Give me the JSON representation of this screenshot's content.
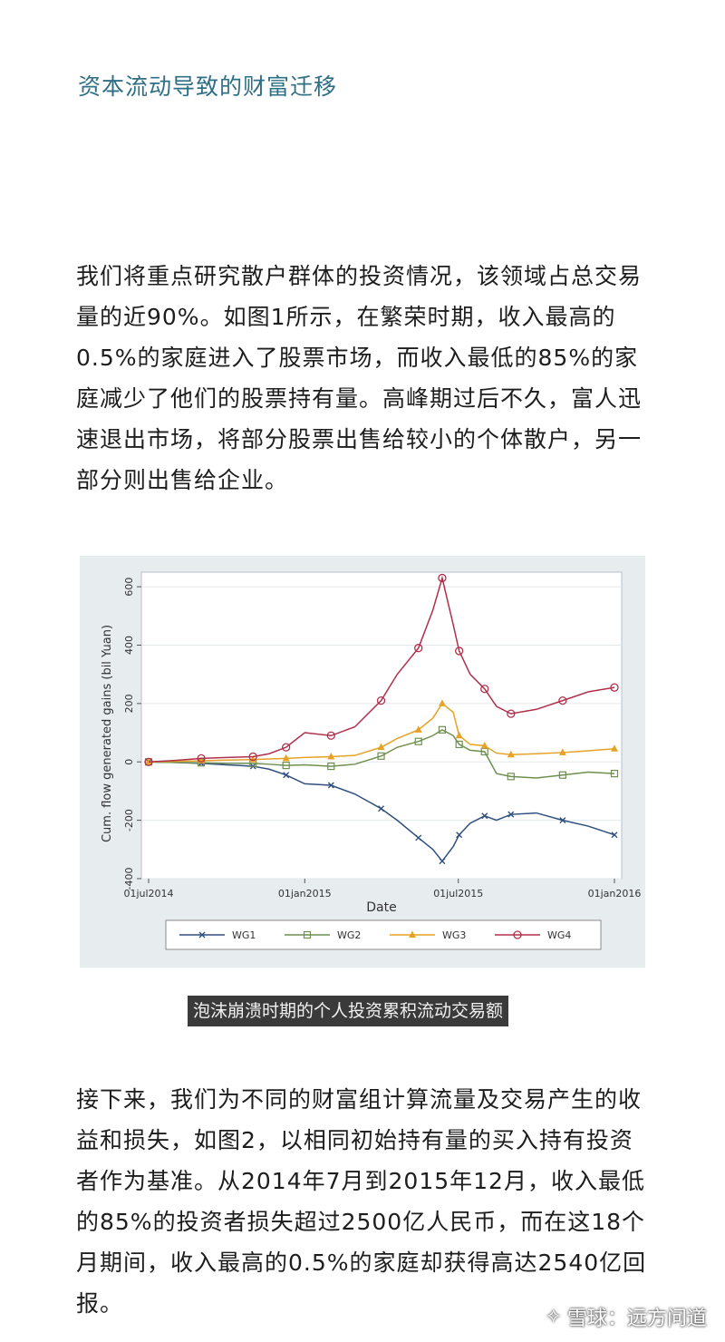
{
  "article": {
    "heading": "资本流动导致的财富迁移",
    "paragraph1": "我们将重点研究散户群体的投资情况，该领域占总交易量的近90%。如图1所示，在繁荣时期，收入最高的0.5%的家庭进入了股票市场，而收入最低的85%的家庭减少了他们的股票持有量。高峰期过后不久，富人迅速退出市场，将部分股票出售给较小的个体散户，另一部分则出售给企业。",
    "caption": "泡沫崩溃时期的个人投资累积流动交易额",
    "paragraph2": "接下来，我们为不同的财富组计算流量及交易产生的收益和损失，如图2，以相同初始持有量的买入持有投资者作为基准。从2014年7月到2015年12月，收入最低的85%的投资者损失超过2500亿人民币，而在这18个月期间，收入最高的0.5%的家庭却获得高达2540亿回报。"
  },
  "watermark": {
    "logo": "✧",
    "text": "雪球：远方问道"
  },
  "chart_data": {
    "type": "line",
    "xlabel": "Date",
    "ylabel": "Cum. flow generated gains (bil Yuan)",
    "x_ticks": [
      "01jul2014",
      "01jan2015",
      "01jul2015",
      "01jan2016"
    ],
    "y_ticks": [
      "-400",
      "-200",
      "0",
      "200",
      "400",
      "600"
    ],
    "ylim": [
      -400,
      650
    ],
    "x_range": [
      "2014-07-01",
      "2016-01-01"
    ],
    "grid": true,
    "legend_position": "bottom",
    "x": [
      "2014-07-01",
      "2014-08-01",
      "2014-09-01",
      "2014-10-01",
      "2014-11-01",
      "2014-11-20",
      "2014-12-10",
      "2015-01-01",
      "2015-02-01",
      "2015-03-01",
      "2015-04-01",
      "2015-04-20",
      "2015-05-15",
      "2015-06-01",
      "2015-06-12",
      "2015-06-25",
      "2015-07-02",
      "2015-07-15",
      "2015-08-01",
      "2015-08-15",
      "2015-09-01",
      "2015-10-01",
      "2015-11-01",
      "2015-12-01",
      "2016-01-01"
    ],
    "series": [
      {
        "name": "WG1",
        "color": "#2f4f7f",
        "marker": "x",
        "values": [
          0,
          -2,
          -5,
          -10,
          -15,
          -25,
          -45,
          -75,
          -80,
          -110,
          -160,
          -200,
          -260,
          -300,
          -340,
          -290,
          -250,
          -210,
          -185,
          -200,
          -180,
          -175,
          -200,
          -220,
          -250
        ]
      },
      {
        "name": "WG2",
        "color": "#6f8f50",
        "marker": "square",
        "values": [
          0,
          -2,
          -3,
          -5,
          -5,
          -8,
          -12,
          -10,
          -15,
          -8,
          20,
          50,
          70,
          90,
          110,
          90,
          60,
          40,
          35,
          -40,
          -50,
          -55,
          -45,
          -35,
          -40
        ]
      },
      {
        "name": "WG3",
        "color": "#e7a226",
        "marker": "triangle",
        "values": [
          0,
          2,
          4,
          6,
          8,
          10,
          12,
          15,
          18,
          22,
          50,
          80,
          110,
          150,
          200,
          170,
          90,
          60,
          55,
          30,
          25,
          28,
          32,
          38,
          45
        ]
      },
      {
        "name": "WG4",
        "color": "#b0304c",
        "marker": "circle",
        "values": [
          0,
          5,
          12,
          15,
          18,
          28,
          50,
          100,
          90,
          120,
          210,
          300,
          390,
          520,
          630,
          470,
          380,
          300,
          250,
          190,
          165,
          180,
          210,
          240,
          255
        ]
      }
    ]
  }
}
